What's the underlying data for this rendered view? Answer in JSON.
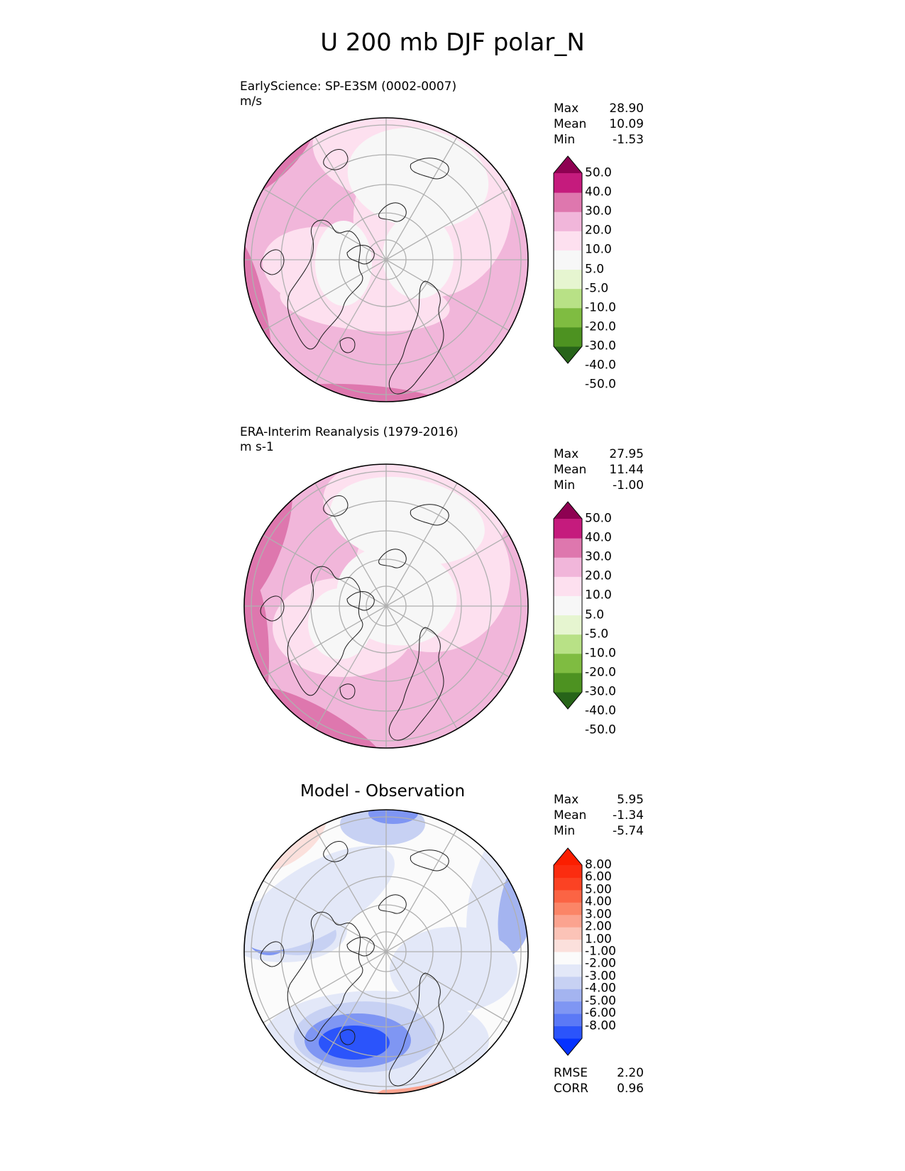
{
  "title": "U 200 mb DJF polar_N",
  "colors": {
    "pink_scale": [
      "#276419",
      "#4d9221",
      "#7fbc41",
      "#b8e186",
      "#e6f5d0",
      "#f7f7f7",
      "#fde0ef",
      "#f1b6da",
      "#de77ae",
      "#c51b7d",
      "#8e0152"
    ],
    "diff_scale": [
      "#0532ff",
      "#2b54fb",
      "#5b79f6",
      "#7f96f3",
      "#a4b4f0",
      "#c7d1f3",
      "#e3e8f8",
      "#fbfbfb",
      "#fbe0dc",
      "#fbc3b7",
      "#fba38f",
      "#fb8567",
      "#fb6444",
      "#fb4223",
      "#fb2c10",
      "#fb1e00"
    ],
    "map_grid": "#b0b0b0",
    "coast": "#1a1a1a"
  },
  "panels": [
    {
      "title_line1": "EarlyScience: SP-E3SM (0002-0007)",
      "title_line2": "m/s",
      "stats": [
        {
          "label": "Max",
          "value": "28.90"
        },
        {
          "label": "Mean",
          "value": "10.09"
        },
        {
          "label": "Min",
          "value": "-1.53"
        }
      ],
      "colorbar_labels": [
        "50.0",
        "40.0",
        "30.0",
        "20.0",
        "10.0",
        "5.0",
        "-5.0",
        "-10.0",
        "-20.0",
        "-30.0",
        "-40.0",
        "-50.0"
      ]
    },
    {
      "title_line1": "ERA-Interim Reanalysis (1979-2016)",
      "title_line2": "m s-1",
      "stats": [
        {
          "label": "Max",
          "value": "27.95"
        },
        {
          "label": "Mean",
          "value": "11.44"
        },
        {
          "label": "Min",
          "value": "-1.00"
        }
      ],
      "colorbar_labels": [
        "50.0",
        "40.0",
        "30.0",
        "20.0",
        "10.0",
        "5.0",
        "-5.0",
        "-10.0",
        "-20.0",
        "-30.0",
        "-40.0",
        "-50.0"
      ]
    },
    {
      "title": "Model - Observation",
      "stats": [
        {
          "label": "Max",
          "value": "5.95"
        },
        {
          "label": "Mean",
          "value": "-1.34"
        },
        {
          "label": "Min",
          "value": "-5.74"
        }
      ],
      "colorbar_labels": [
        "8.00",
        "6.00",
        "5.00",
        "4.00",
        "3.00",
        "2.00",
        "1.00",
        "-1.00",
        "-2.00",
        "-3.00",
        "-4.00",
        "-5.00",
        "-6.00",
        "-8.00"
      ],
      "metrics": [
        {
          "label": "RMSE",
          "value": "2.20"
        },
        {
          "label": "CORR",
          "value": "0.96"
        }
      ]
    }
  ],
  "chart_data": [
    {
      "type": "heatmap",
      "projection": "north polar stereographic",
      "title": "EarlyScience: SP-E3SM (0002-0007)",
      "units": "m/s",
      "max": 28.9,
      "mean": 10.09,
      "min": -1.53,
      "levels": [
        -50,
        -40,
        -30,
        -20,
        -10,
        -5,
        5,
        10,
        20,
        30,
        40,
        50
      ]
    },
    {
      "type": "heatmap",
      "projection": "north polar stereographic",
      "title": "ERA-Interim Reanalysis (1979-2016)",
      "units": "m s-1",
      "max": 27.95,
      "mean": 11.44,
      "min": -1.0,
      "levels": [
        -50,
        -40,
        -30,
        -20,
        -10,
        -5,
        5,
        10,
        20,
        30,
        40,
        50
      ]
    },
    {
      "type": "heatmap",
      "projection": "north polar stereographic",
      "title": "Model - Observation",
      "max": 5.95,
      "mean": -1.34,
      "min": -5.74,
      "rmse": 2.2,
      "corr": 0.96,
      "levels": [
        -8,
        -6,
        -5,
        -4,
        -3,
        -2,
        -1,
        1,
        2,
        3,
        4,
        5,
        6,
        8
      ]
    }
  ]
}
